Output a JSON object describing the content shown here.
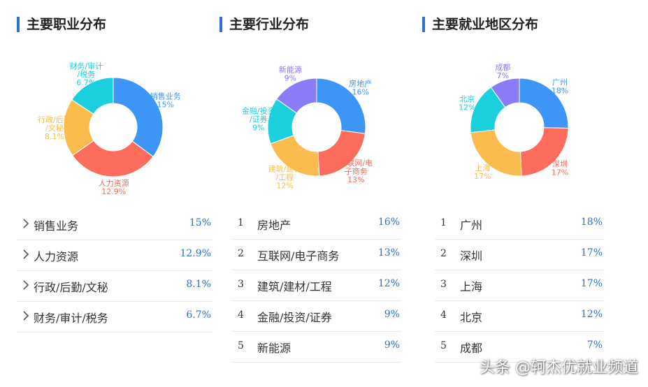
{
  "chart_data": [
    {
      "type": "pie",
      "title": "主要职业分布",
      "categories": [
        "销售业务",
        "人力资源",
        "行政/后勤/文秘",
        "财务/审计/税务"
      ],
      "values": [
        15,
        12.9,
        8.1,
        6.7
      ],
      "value_labels": [
        "15%",
        "12.9%",
        "8.1%",
        "6.7%"
      ],
      "slice_label_lines": [
        [
          "销售业务",
          "15%"
        ],
        [
          "人力资源",
          "12.9%"
        ],
        [
          "行政/后勤",
          "/文秘",
          "8.1%"
        ],
        [
          "财务/审计",
          "/税务",
          "6.7%"
        ]
      ],
      "colors": [
        "#3d95f5",
        "#fb6c5d",
        "#fcbb4e",
        "#1ccfdc"
      ]
    },
    {
      "type": "pie",
      "title": "主要行业分布",
      "categories": [
        "房地产",
        "互联网/电子商务",
        "建筑/建材/工程",
        "金融/投资/证券",
        "新能源"
      ],
      "values": [
        16,
        13,
        12,
        9,
        9
      ],
      "value_labels": [
        "16%",
        "13%",
        "12%",
        "9%",
        "9%"
      ],
      "slice_label_lines": [
        [
          "房地产",
          "16%"
        ],
        [
          "互联网/电",
          "子商务",
          "13%"
        ],
        [
          "建筑/建材",
          "/工程",
          "12%"
        ],
        [
          "金融/投资",
          "/证券",
          "9%"
        ],
        [
          "新能源",
          "9%"
        ]
      ],
      "colors": [
        "#3d95f5",
        "#fb6c5d",
        "#fcbb4e",
        "#1ccfdc",
        "#8a7cf6"
      ]
    },
    {
      "type": "pie",
      "title": "主要就业地区分布",
      "categories": [
        "广州",
        "深圳",
        "上海",
        "北京",
        "成都"
      ],
      "values": [
        18,
        17,
        17,
        12,
        7
      ],
      "value_labels": [
        "18%",
        "17%",
        "17%",
        "12%",
        "7%"
      ],
      "slice_label_lines": [
        [
          "广州",
          "18%"
        ],
        [
          "深圳",
          "17%"
        ],
        [
          "上海",
          "17%"
        ],
        [
          "北京",
          "12%"
        ],
        [
          "成都",
          "7%"
        ]
      ],
      "colors": [
        "#3d95f5",
        "#fb6c5d",
        "#fcbb4e",
        "#1ccfdc",
        "#8a7cf6"
      ]
    }
  ],
  "lists": [
    {
      "rows": [
        {
          "name": "销售业务",
          "pct": "15%"
        },
        {
          "name": "人力资源",
          "pct": "12.9%"
        },
        {
          "name": "行政/后勤/文秘",
          "pct": "8.1%"
        },
        {
          "name": "财务/审计/税务",
          "pct": "6.7%"
        }
      ]
    },
    {
      "rows": [
        {
          "rank": "1",
          "name": "房地产",
          "pct": "16%"
        },
        {
          "rank": "2",
          "name": "互联网/电子商务",
          "pct": "13%"
        },
        {
          "rank": "3",
          "name": "建筑/建材/工程",
          "pct": "12%"
        },
        {
          "rank": "4",
          "name": "金融/投资/证券",
          "pct": "9%"
        },
        {
          "rank": "5",
          "name": "新能源",
          "pct": "9%"
        }
      ]
    },
    {
      "rows": [
        {
          "rank": "1",
          "name": "广州",
          "pct": "18%"
        },
        {
          "rank": "2",
          "name": "深圳",
          "pct": "17%"
        },
        {
          "rank": "3",
          "name": "上海",
          "pct": "17%"
        },
        {
          "rank": "4",
          "name": "北京",
          "pct": "12%"
        },
        {
          "rank": "5",
          "name": "成都",
          "pct": "7%"
        }
      ]
    }
  ],
  "watermark": "头条 @轲杰优就业频道"
}
